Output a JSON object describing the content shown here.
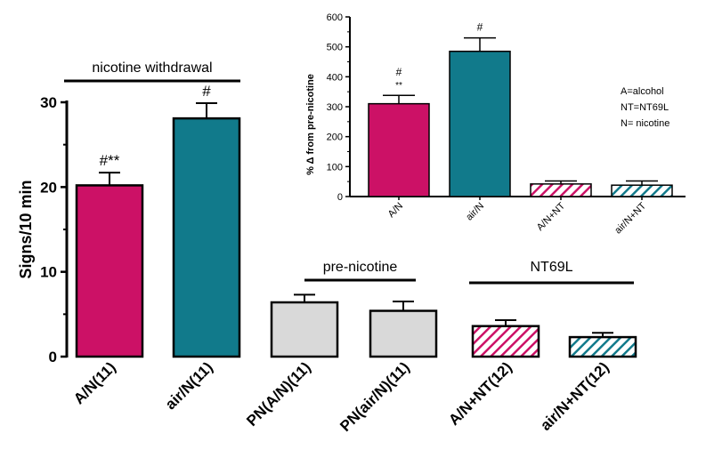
{
  "chart_data": [
    {
      "type": "bar",
      "categories": [
        "A/N(11)",
        "air/N(11)",
        "PN(A/N)(11)",
        "PN(air/N)(11)",
        "A/N+NT(12)",
        "air/N+NT(12)"
      ],
      "values": [
        20.2,
        28.1,
        6.4,
        5.4,
        3.6,
        2.3
      ],
      "errors": [
        1.5,
        1.8,
        0.9,
        1.1,
        0.7,
        0.5
      ],
      "significance": [
        "#**",
        "#",
        "",
        "",
        "",
        ""
      ],
      "bar_colors": [
        "#cc1166",
        "#117a8b",
        "#d9d9d9",
        "#d9d9d9",
        "#cc1166",
        "#117a8b"
      ],
      "hatched": [
        false,
        false,
        false,
        false,
        true,
        true
      ],
      "ylabel": "Signs/10 min",
      "ylim": [
        0,
        30
      ],
      "yticks": [
        "0",
        "10",
        "20",
        "30"
      ],
      "group_labels": [
        {
          "label": "nicotine withdrawal",
          "from": 0,
          "to": 1
        },
        {
          "label": "pre-nicotine",
          "from": 2,
          "to": 3
        },
        {
          "label": "NT69L",
          "from": 4,
          "to": 5
        }
      ]
    },
    {
      "type": "bar",
      "categories": [
        "A/N",
        "air/N",
        "A/N+NT",
        "air/N+NT"
      ],
      "values": [
        310,
        485,
        42,
        38
      ],
      "errors": [
        28,
        45,
        10,
        14
      ],
      "significance_top": [
        "#",
        "#",
        "",
        ""
      ],
      "significance_bottom": [
        "**",
        "",
        "",
        ""
      ],
      "bar_colors": [
        "#cc1166",
        "#117a8b",
        "#cc1166",
        "#117a8b"
      ],
      "hatched": [
        false,
        false,
        true,
        true
      ],
      "ylabel": "% Δ from pre-nicotine",
      "ylim": [
        0,
        600
      ],
      "yticks": [
        "0",
        "100",
        "200",
        "300",
        "400",
        "500",
        "600"
      ],
      "legend": [
        "A=alcohol",
        "NT=NT69L",
        "N= nicotine"
      ]
    }
  ]
}
